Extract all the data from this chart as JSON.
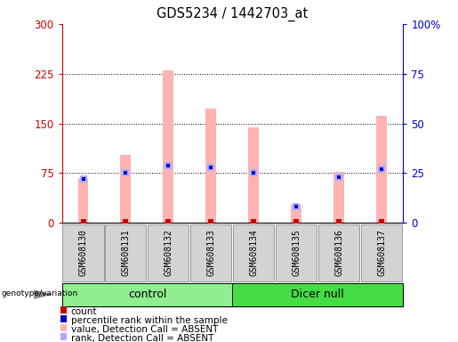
{
  "title": "GDS5234 / 1442703_at",
  "samples": [
    "GSM608130",
    "GSM608131",
    "GSM608132",
    "GSM608133",
    "GSM608134",
    "GSM608135",
    "GSM608136",
    "GSM608137"
  ],
  "value_absent": [
    68,
    102,
    230,
    172,
    144,
    27,
    77,
    161
  ],
  "rank_absent_pct": [
    22,
    25,
    29,
    28,
    25,
    8,
    23,
    27
  ],
  "ylim_left": [
    0,
    300
  ],
  "ylim_right": [
    0,
    100
  ],
  "yticks_left": [
    0,
    75,
    150,
    225,
    300
  ],
  "yticks_right": [
    0,
    25,
    50,
    75,
    100
  ],
  "ytick_labels_right": [
    "0",
    "25",
    "50",
    "75",
    "100%"
  ],
  "bar_width": 0.25,
  "color_value_absent": "#FFB3B3",
  "color_rank_absent": "#AAAAFF",
  "color_count": "#CC0000",
  "color_rank": "#0000CC",
  "color_ctrl": "#90EE90",
  "color_dicer": "#44DD44",
  "legend_items": [
    {
      "label": "count",
      "color": "#CC0000"
    },
    {
      "label": "percentile rank within the sample",
      "color": "#0000CC"
    },
    {
      "label": "value, Detection Call = ABSENT",
      "color": "#FFB3B3"
    },
    {
      "label": "rank, Detection Call = ABSENT",
      "color": "#AAAAFF"
    }
  ]
}
